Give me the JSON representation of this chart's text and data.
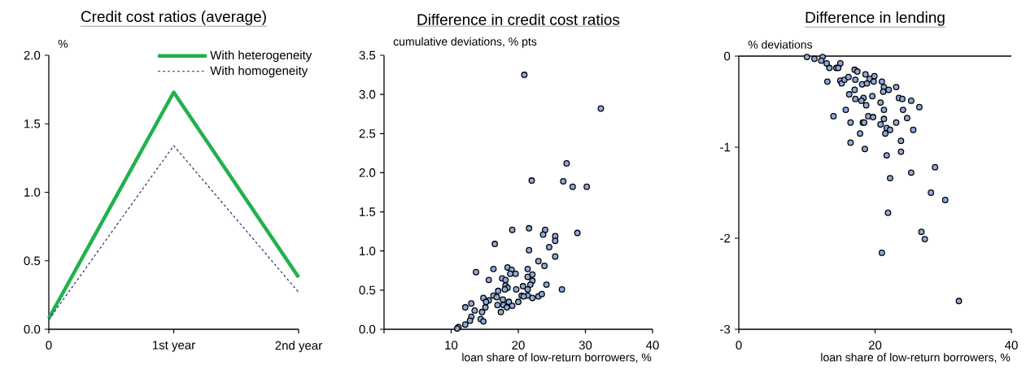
{
  "chart_data": [
    {
      "type": "line",
      "title": "Credit cost ratios (average)",
      "ylabel": "%",
      "categories": [
        "0",
        "1st year",
        "2nd year"
      ],
      "series": [
        {
          "name": "With heterogeneity",
          "color": "#22b14c",
          "line_style": "solid",
          "values": [
            0.08,
            1.73,
            0.38
          ]
        },
        {
          "name": "With homogeneity",
          "color": "#1f2a6b",
          "line_style": "dashed",
          "values": [
            0.07,
            1.34,
            0.27
          ]
        }
      ],
      "ylim": [
        0,
        2
      ],
      "yticks": [
        {
          "value": 0,
          "label": "0.0"
        },
        {
          "value": 0.5,
          "label": "0.5"
        },
        {
          "value": 1,
          "label": "1.0"
        },
        {
          "value": 1.5,
          "label": "1.5"
        },
        {
          "value": 2,
          "label": "2.0"
        }
      ],
      "legend": "top right",
      "marker": "none"
    },
    {
      "type": "scatter",
      "title": "Difference in credit cost ratios",
      "ylabel": "cumulative deviations, % pts",
      "xlabel": "loan share of low-return borrowers, %",
      "x": [
        20.9,
        32.3,
        27.2,
        22.0,
        26.7,
        28.1,
        30.2,
        19.1,
        21.6,
        24.0,
        23.7,
        25.5,
        25.5,
        28.8,
        16.5,
        24.6,
        21.6,
        25.5,
        23.0,
        23.9,
        13.7,
        16.3,
        18.4,
        19.0,
        19.6,
        18.8,
        21.4,
        21.4,
        22.1,
        15.6,
        17.6,
        18.1,
        22.1,
        18.1,
        21.8,
        24.2,
        26.5,
        18.4,
        18.0,
        17.0,
        19.7,
        20.7,
        21.4,
        16.3,
        16.8,
        20.5,
        21.4,
        20.8,
        22.1,
        23.0,
        23.5,
        14.8,
        15.6,
        15.2,
        17.7,
        18.6,
        20.0,
        16.9,
        17.8,
        18.3,
        19.1,
        17.4,
        13.0,
        12.1,
        13.5,
        15.1,
        14.6,
        13.0,
        12.8,
        14.4,
        14.8,
        12.1,
        11.1,
        10.9
      ],
      "values": [
        3.25,
        2.82,
        2.12,
        1.9,
        1.89,
        1.82,
        1.82,
        1.27,
        1.29,
        1.27,
        1.21,
        1.19,
        1.13,
        1.23,
        1.09,
        1.05,
        1.01,
        0.93,
        0.87,
        0.81,
        0.73,
        0.77,
        0.79,
        0.76,
        0.71,
        0.71,
        0.77,
        0.67,
        0.7,
        0.63,
        0.65,
        0.63,
        0.62,
        0.56,
        0.57,
        0.57,
        0.51,
        0.53,
        0.51,
        0.49,
        0.51,
        0.55,
        0.51,
        0.43,
        0.41,
        0.43,
        0.43,
        0.42,
        0.4,
        0.42,
        0.45,
        0.4,
        0.37,
        0.35,
        0.38,
        0.35,
        0.35,
        0.31,
        0.31,
        0.28,
        0.3,
        0.22,
        0.33,
        0.28,
        0.24,
        0.28,
        0.22,
        0.16,
        0.11,
        0.13,
        0.1,
        0.06,
        0.03,
        0.01
      ],
      "color": "#8eaadb",
      "marker": "circle",
      "xlim": [
        0,
        40
      ],
      "xticks": [
        {
          "value": 0,
          "label": null
        },
        10,
        20,
        30,
        40
      ],
      "ylim": [
        0,
        3.5
      ],
      "yticks": [
        {
          "value": 0,
          "label": "0.0"
        },
        {
          "value": 0.5,
          "label": "0.5"
        },
        {
          "value": 1,
          "label": "1.0"
        },
        {
          "value": 1.5,
          "label": "1.5"
        },
        {
          "value": 2,
          "label": "2.0"
        },
        {
          "value": 2.5,
          "label": "2.5"
        },
        {
          "value": 3,
          "label": "3.0"
        },
        {
          "value": 3.5,
          "label": "3.5"
        }
      ]
    },
    {
      "type": "scatter",
      "title": "Difference in lending",
      "ylabel": "% deviations",
      "xlabel": "loan share of low-return borrowers, %",
      "x": [
        10.0,
        11.1,
        12.3,
        12.1,
        12.9,
        13.3,
        14.3,
        14.9,
        14.6,
        13.0,
        14.9,
        15.1,
        15.5,
        16.1,
        17.0,
        17.4,
        17.1,
        18.1,
        18.6,
        18.8,
        19.2,
        19.9,
        19.8,
        21.0,
        21.3,
        22.0,
        21.2,
        23.1,
        17.0,
        16.2,
        17.1,
        18.3,
        18.0,
        18.7,
        19.6,
        20.8,
        23.5,
        24.0,
        25.3,
        26.5,
        15.7,
        21.3,
        24.1,
        13.9,
        19.0,
        19.7,
        16.4,
        18.2,
        18.4,
        21.3,
        20.8,
        23.1,
        24.7,
        21.7,
        22.2,
        21.5,
        17.8,
        25.6,
        23.8,
        16.4,
        18.5,
        21.7,
        23.8,
        28.8,
        25.3,
        22.2,
        28.2,
        30.3,
        21.9,
        26.8,
        27.3,
        21.0,
        32.3
      ],
      "values": [
        -0.01,
        -0.03,
        -0.01,
        -0.05,
        -0.08,
        -0.13,
        -0.13,
        -0.08,
        -0.13,
        -0.28,
        -0.27,
        -0.3,
        -0.26,
        -0.23,
        -0.15,
        -0.17,
        -0.26,
        -0.31,
        -0.2,
        -0.3,
        -0.25,
        -0.22,
        -0.28,
        -0.28,
        -0.34,
        -0.37,
        -0.39,
        -0.34,
        -0.37,
        -0.42,
        -0.47,
        -0.46,
        -0.49,
        -0.54,
        -0.44,
        -0.51,
        -0.46,
        -0.47,
        -0.49,
        -0.56,
        -0.59,
        -0.59,
        -0.59,
        -0.66,
        -0.66,
        -0.67,
        -0.73,
        -0.73,
        -0.73,
        -0.69,
        -0.75,
        -0.73,
        -0.68,
        -0.79,
        -0.81,
        -0.85,
        -0.85,
        -0.81,
        -0.93,
        -0.95,
        -1.02,
        -1.09,
        -1.05,
        -1.22,
        -1.28,
        -1.34,
        -1.5,
        -1.58,
        -1.72,
        -1.93,
        -2.01,
        -2.16,
        -2.69
      ],
      "color": "#8eaadb",
      "marker": "circle",
      "xlim": [
        0,
        40
      ],
      "xticks": [
        0,
        20,
        40
      ],
      "ylim": [
        -3,
        0
      ],
      "yticks": [
        -3,
        -2,
        -1,
        0
      ],
      "ref_lines": [
        {
          "axis": "y",
          "value": 0,
          "color": "#000000"
        }
      ]
    }
  ]
}
